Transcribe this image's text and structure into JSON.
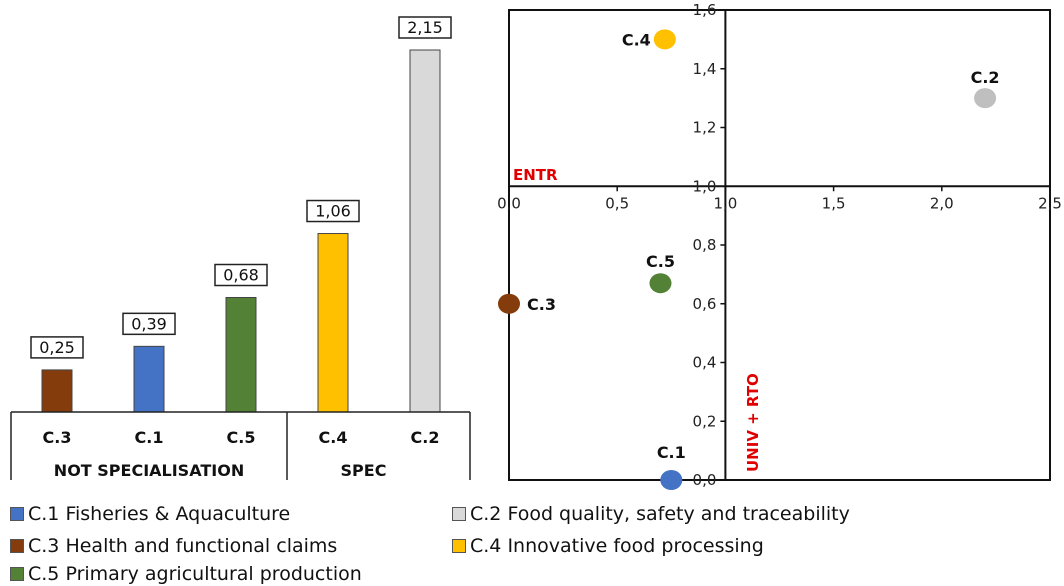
{
  "chart_data": [
    {
      "type": "bar",
      "categories": [
        "C.3",
        "C.1",
        "C.5",
        "C.4",
        "C.2"
      ],
      "values": [
        0.25,
        0.39,
        0.68,
        1.06,
        2.15
      ],
      "value_labels": [
        "0,25",
        "0,39",
        "0,68",
        "1,06",
        "2,15"
      ],
      "colors": [
        "#843c0c",
        "#4472c4",
        "#538135",
        "#ffc000",
        "#d9d9d9"
      ],
      "groups": [
        {
          "label": "NOT SPECIALISATION",
          "categories": [
            "C.3",
            "C.1",
            "C.5"
          ]
        },
        {
          "label": "SPEC",
          "categories": [
            "C.4",
            "C.2"
          ]
        }
      ],
      "ylim": [
        0,
        2.15
      ]
    },
    {
      "type": "scatter",
      "xlabel": "ENTR",
      "ylabel": "UNIV + RTO",
      "xlim": [
        0,
        2.5
      ],
      "ylim": [
        0,
        1.6
      ],
      "x_ticks": [
        0,
        0.5,
        1,
        1.5,
        2,
        2.5
      ],
      "x_tick_labels": [
        "0,0",
        "0,5",
        "1,0",
        "1,5",
        "2,0",
        "2,5"
      ],
      "y_ticks": [
        0,
        0.2,
        0.4,
        0.6,
        0.8,
        1.0,
        1.2,
        1.4,
        1.6
      ],
      "y_tick_labels": [
        "0,0",
        "0,2",
        "0,4",
        "0,6",
        "0,8",
        "1,0",
        "1,2",
        "1,4",
        "1,6"
      ],
      "quadrant_center": [
        1,
        1
      ],
      "points": [
        {
          "label": "C.1",
          "x": 0.75,
          "y": 0.0,
          "color": "#4472c4"
        },
        {
          "label": "C.2",
          "x": 2.2,
          "y": 1.3,
          "color": "#bfbfbf"
        },
        {
          "label": "C.3",
          "x": 0.0,
          "y": 0.6,
          "color": "#843c0c"
        },
        {
          "label": "C.4",
          "x": 0.72,
          "y": 1.5,
          "color": "#ffc000"
        },
        {
          "label": "C.5",
          "x": 0.7,
          "y": 0.67,
          "color": "#538135"
        }
      ]
    }
  ],
  "legend": [
    {
      "code": "C.1",
      "text": "Fisheries & Aquaculture",
      "color": "#4472c4"
    },
    {
      "code": "C.2",
      "text": "Food quality, safety and traceability",
      "color": "#d9d9d9"
    },
    {
      "code": "C.3",
      "text": "Health and functional claims",
      "color": "#843c0c"
    },
    {
      "code": "C.4",
      "text": "Innovative food processing",
      "color": "#ffc000"
    },
    {
      "code": "C.5",
      "text": "Primary agricultural production",
      "color": "#538135"
    }
  ]
}
